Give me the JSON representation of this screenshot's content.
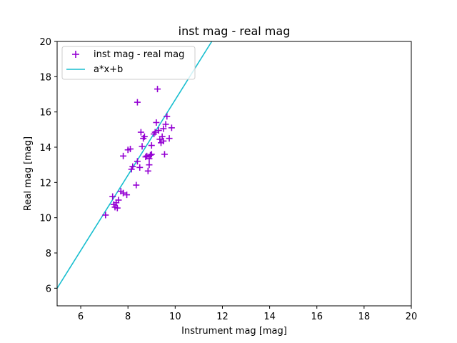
{
  "chart_data": {
    "type": "scatter",
    "title": "inst mag - real mag",
    "xlabel": "Instrument mag [mag]",
    "ylabel": "Real mag [mag]",
    "xlim": [
      5,
      20
    ],
    "ylim": [
      5,
      20
    ],
    "xticks": [
      "6",
      "8",
      "10",
      "12",
      "14",
      "16",
      "18",
      "20"
    ],
    "yticks": [
      "6",
      "8",
      "10",
      "12",
      "14",
      "16",
      "18",
      "20"
    ],
    "grid": false,
    "legend_position": "top-left",
    "series": [
      {
        "name": "inst mag - real mag",
        "kind": "scatter",
        "marker": "plus",
        "color": "#9400d3",
        "points": [
          [
            7.05,
            10.15
          ],
          [
            7.35,
            11.2
          ],
          [
            7.4,
            10.75
          ],
          [
            7.45,
            10.6
          ],
          [
            7.5,
            10.85
          ],
          [
            7.55,
            10.55
          ],
          [
            7.6,
            11.0
          ],
          [
            7.7,
            11.5
          ],
          [
            7.8,
            11.4
          ],
          [
            7.95,
            11.3
          ],
          [
            7.8,
            13.5
          ],
          [
            8.0,
            13.85
          ],
          [
            8.1,
            13.9
          ],
          [
            8.15,
            12.75
          ],
          [
            8.2,
            12.9
          ],
          [
            8.35,
            11.85
          ],
          [
            8.4,
            13.2
          ],
          [
            8.4,
            16.55
          ],
          [
            8.5,
            12.85
          ],
          [
            8.55,
            14.85
          ],
          [
            8.6,
            14.05
          ],
          [
            8.65,
            14.5
          ],
          [
            8.7,
            14.6
          ],
          [
            8.75,
            13.45
          ],
          [
            8.8,
            13.5
          ],
          [
            8.85,
            12.65
          ],
          [
            8.9,
            13.0
          ],
          [
            8.9,
            13.35
          ],
          [
            8.95,
            13.55
          ],
          [
            9.0,
            13.6
          ],
          [
            9.0,
            14.1
          ],
          [
            9.1,
            14.75
          ],
          [
            9.15,
            14.85
          ],
          [
            9.2,
            15.4
          ],
          [
            9.25,
            17.3
          ],
          [
            9.3,
            14.95
          ],
          [
            9.35,
            14.45
          ],
          [
            9.4,
            14.25
          ],
          [
            9.45,
            14.6
          ],
          [
            9.5,
            14.35
          ],
          [
            9.5,
            15.05
          ],
          [
            9.55,
            13.6
          ],
          [
            9.6,
            15.3
          ],
          [
            9.65,
            15.75
          ],
          [
            9.75,
            14.5
          ],
          [
            9.85,
            15.1
          ]
        ]
      },
      {
        "name": "a*x+b",
        "kind": "line",
        "color": "#17becf",
        "points": [
          [
            5.0,
            6.0
          ],
          [
            11.55,
            20.0
          ]
        ]
      }
    ]
  }
}
